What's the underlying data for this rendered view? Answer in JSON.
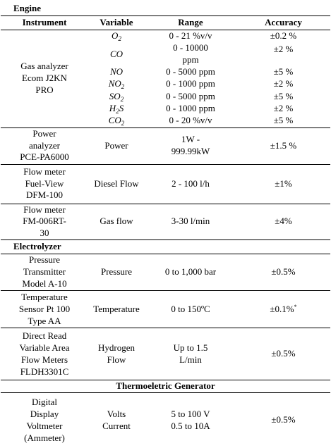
{
  "sections": {
    "engine": "Engine",
    "electrolyzer": "Electrolyzer",
    "teg": "Thermoeletric Generator"
  },
  "header": {
    "instrument": "Instrument",
    "variable": "Variable",
    "range": "Range",
    "accuracy": "Accuracy"
  },
  "gas": {
    "instrument": "Gas analyzer\nEcom J2KN\nPRO",
    "rows": [
      {
        "var_main": "O",
        "var_sub": "2",
        "range": "0 - 21  %v/v",
        "acc": "±0.2 %"
      },
      {
        "var_main": "CO",
        "var_sub": "",
        "range": "0 - 10000\nppm",
        "acc": "±2 %"
      },
      {
        "var_main": "NO",
        "var_sub": "",
        "range": "0 - 5000 ppm",
        "acc": "±5 %"
      },
      {
        "var_main": "NO",
        "var_sub": "2",
        "range": "0 - 1000 ppm",
        "acc": "±2 %"
      },
      {
        "var_main": "SO",
        "var_sub": "2",
        "range": "0 - 5000 ppm",
        "acc": "±5 %"
      },
      {
        "var_main": "H",
        "var_sub": "2",
        "var_tail": "S",
        "range": "0 - 1000 ppm",
        "acc": "±2 %"
      },
      {
        "var_main": "CO",
        "var_sub": "2",
        "range": "0 - 20  %v/v",
        "acc": "±5 %"
      }
    ]
  },
  "power": {
    "instrument": "Power\nanalyzer\nPCE-PA6000",
    "variable": "Power",
    "range": "1W -\n999.99kW",
    "acc": "±1.5 %"
  },
  "flow1": {
    "instrument": "Flow meter\nFuel-View\nDFM-100",
    "variable": "Diesel Flow",
    "range": "2 - 100 l/h",
    "acc": "±1%"
  },
  "flow2": {
    "instrument": "Flow meter\nFM-006RT-\n30",
    "variable": "Gas flow",
    "range": "3-30 l/min",
    "acc": "±4%"
  },
  "pressure": {
    "instrument": "Pressure\nTransmitter\nModel A-10",
    "variable": "Pressure",
    "range": "0 to 1,000 bar",
    "acc": "±0.5%"
  },
  "temperature": {
    "instrument": "Temperature\nSensor Pt 100\nType AA",
    "variable": "Temperature",
    "range": "0 to 150ºC",
    "acc": "±0.1%",
    "acc_mark": "*"
  },
  "hydrogen": {
    "instrument": "Direct Read\nVariable Area\nFlow Meters\nFLDH3301C",
    "variable": "Hydrogen\nFlow",
    "range": "Up to 1.5\nL/min",
    "acc": "±0.5%"
  },
  "voltmeter": {
    "instrument": "Digital\nDisplay\nVoltmeter\n(Ammeter)",
    "variable": "Volts\nCurrent",
    "range": "5 to 100 V\n0.5 to 10A",
    "acc": "±0.5%"
  }
}
